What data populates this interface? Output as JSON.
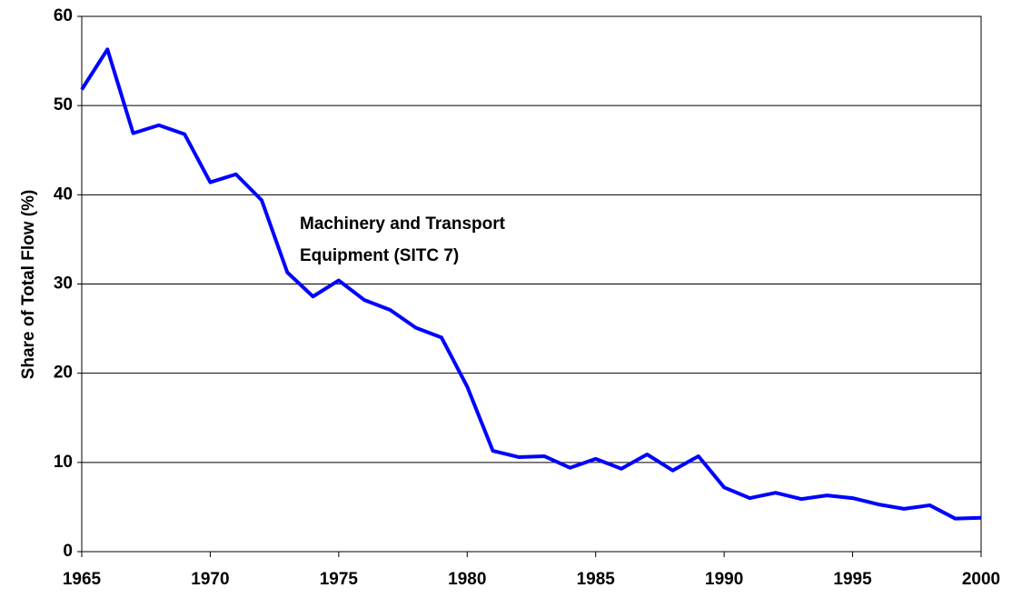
{
  "chart_data": {
    "type": "line",
    "y_label": "Share of Total Flow (%)",
    "annotation": [
      "Machinery and Transport",
      "Equipment (SITC 7)"
    ],
    "x": [
      1965,
      1966,
      1967,
      1968,
      1969,
      1970,
      1971,
      1972,
      1973,
      1974,
      1975,
      1976,
      1977,
      1978,
      1979,
      1980,
      1981,
      1982,
      1983,
      1984,
      1985,
      1986,
      1987,
      1988,
      1989,
      1990,
      1991,
      1992,
      1993,
      1994,
      1995,
      1996,
      1997,
      1998,
      1999,
      2000
    ],
    "series": [
      {
        "color": "#0000ff",
        "values": [
          51.8,
          56.3,
          46.9,
          47.8,
          46.8,
          41.4,
          42.3,
          39.4,
          31.3,
          28.6,
          30.4,
          28.2,
          27.1,
          25.1,
          24.0,
          18.5,
          11.3,
          10.6,
          10.7,
          9.4,
          10.4,
          9.3,
          10.9,
          9.1,
          10.7,
          7.2,
          6.0,
          6.6,
          5.9,
          6.3,
          6.0,
          5.3,
          4.8,
          5.2,
          3.7,
          3.8
        ]
      }
    ],
    "xlim": [
      1965,
      2000
    ],
    "xticks": [
      1965,
      1970,
      1975,
      1980,
      1985,
      1990,
      1995,
      2000
    ],
    "ylim": [
      0,
      60
    ],
    "yticks": [
      0,
      10,
      20,
      30,
      40,
      50,
      60
    ],
    "grid": true
  }
}
